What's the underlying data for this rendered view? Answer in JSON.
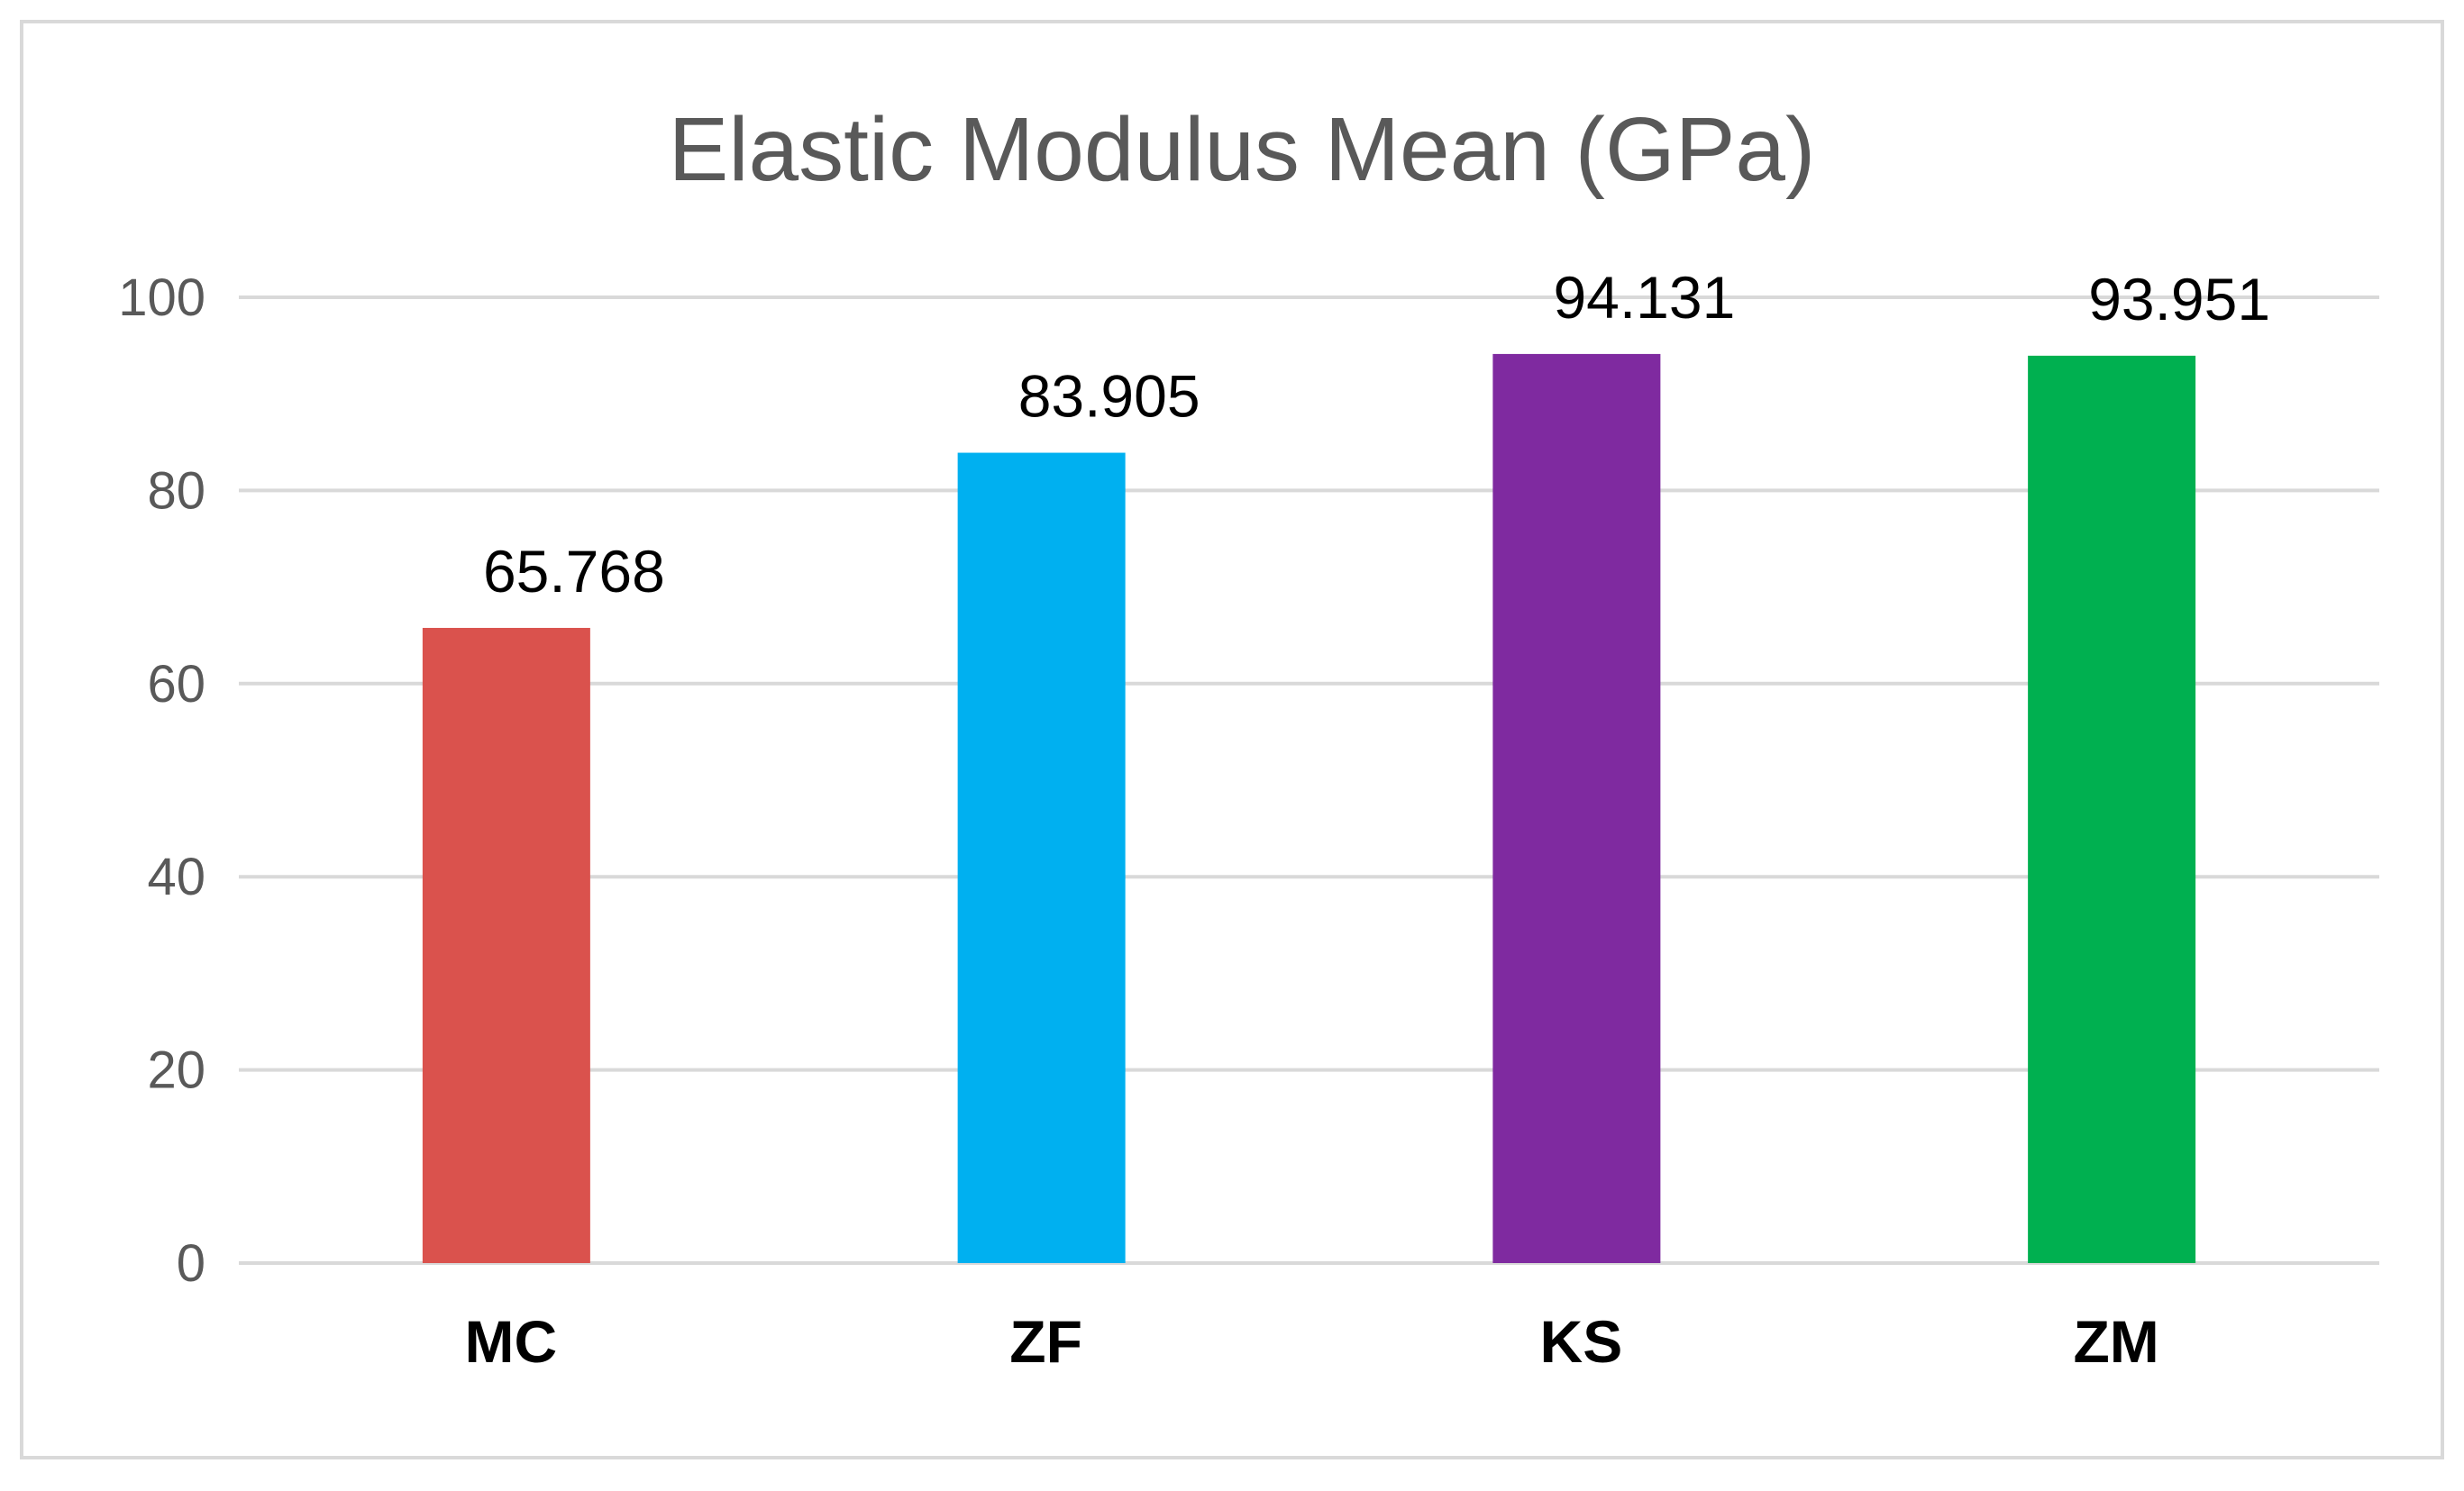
{
  "chart_data": {
    "type": "bar",
    "title": "Elastic Modulus Mean (GPa)",
    "categories": [
      "MC",
      "ZF",
      "KS",
      "ZM"
    ],
    "values": [
      65.768,
      83.905,
      94.131,
      93.951
    ],
    "data_labels": [
      "65.768",
      "83.905",
      "94.131",
      "93.951"
    ],
    "colors": [
      "#DA524D",
      "#00B0F0",
      "#7F2AA0",
      "#00B050"
    ],
    "xlabel": "",
    "ylabel": "",
    "ylim": [
      0,
      100
    ],
    "yticks": [
      0,
      20,
      40,
      60,
      80,
      100
    ],
    "grid": true,
    "legend": "none"
  }
}
